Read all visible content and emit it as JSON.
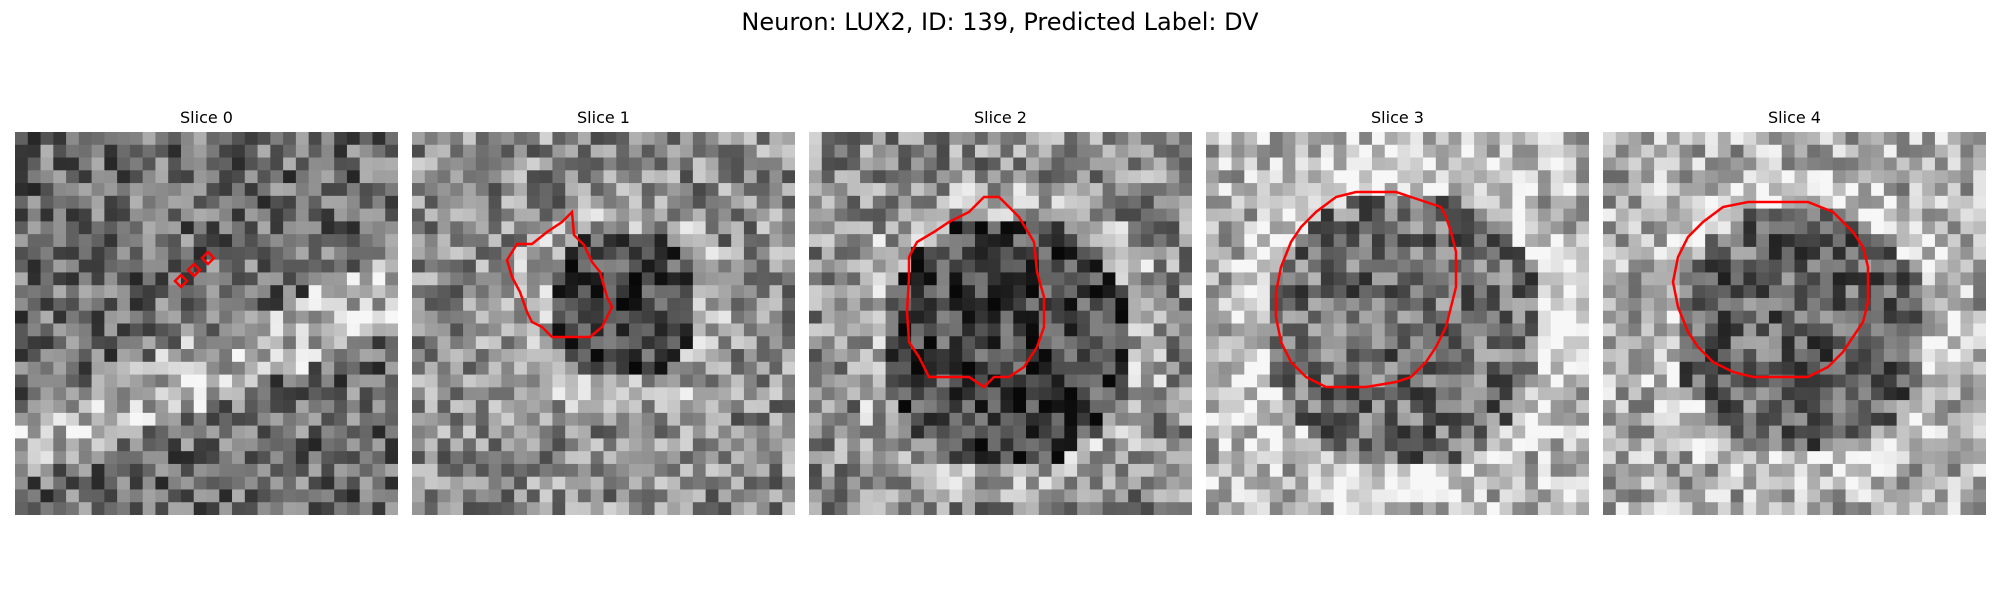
{
  "figure": {
    "title": "Neuron: LUX2, ID: 139, Predicted Label: DV"
  },
  "panels": [
    {
      "title": "Slice 0"
    },
    {
      "title": "Slice 1"
    },
    {
      "title": "Slice 2"
    },
    {
      "title": "Slice 3"
    },
    {
      "title": "Slice 4"
    }
  ],
  "style": {
    "contour_color": "#ff0000",
    "image_colormap": "grayscale"
  }
}
